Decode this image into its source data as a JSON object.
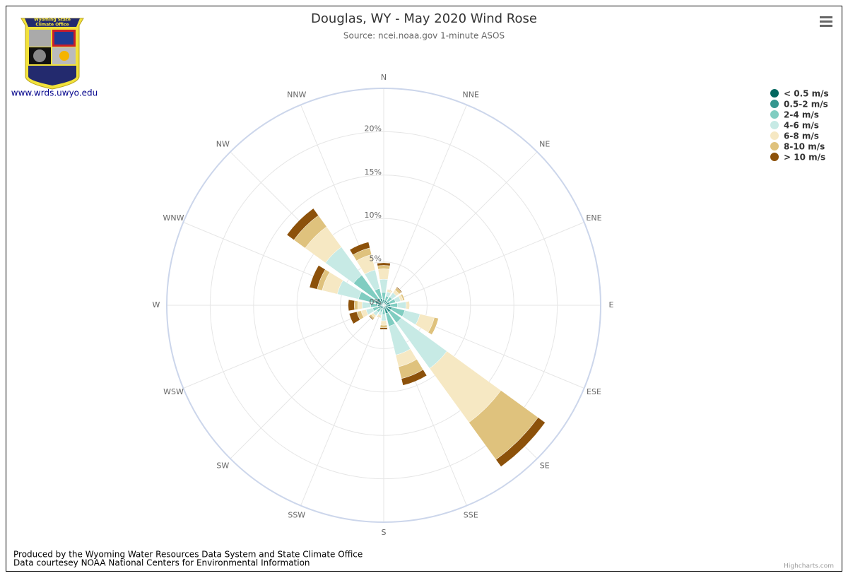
{
  "header": {
    "logo_text": [
      "Wyoming State",
      "Climate Office"
    ],
    "link": "www.wrds.uwyo.edu"
  },
  "footer": {
    "lines": [
      "Produced by the Wyoming Water Resources Data System and State Climate Office",
      "Data courtesey NOAA National Centers for Environmental Information"
    ],
    "credits": "Highcharts.com"
  },
  "chart_data": {
    "type": "windrose",
    "title": "Douglas, WY - May 2020 Wind Rose",
    "subtitle": "Source: ncei.noaa.gov 1-minute ASOS",
    "categories": [
      "N",
      "NNE",
      "NE",
      "ENE",
      "E",
      "ESE",
      "SE",
      "SSE",
      "S",
      "SSW",
      "SW",
      "WSW",
      "W",
      "WNW",
      "NW",
      "NNW"
    ],
    "ylim": [
      0,
      25
    ],
    "yticks": [
      {
        "value": 0,
        "label": "0%"
      },
      {
        "value": 5,
        "label": "5%"
      },
      {
        "value": 10,
        "label": "10%"
      },
      {
        "value": 15,
        "label": "15%"
      },
      {
        "value": 20,
        "label": "20%"
      }
    ],
    "grid": true,
    "legend": "right",
    "series": [
      {
        "name": "< 0.5 m/s",
        "color": "#01665e",
        "values": [
          0.2,
          0.2,
          0.2,
          0.2,
          0.2,
          0.2,
          0.2,
          0.2,
          0.1,
          0.1,
          0.1,
          0.2,
          0.2,
          0.2,
          0.2,
          0.2
        ]
      },
      {
        "name": "0.5-2 m/s",
        "color": "#35978f",
        "values": [
          0.5,
          0.4,
          0.4,
          0.5,
          0.6,
          0.8,
          0.8,
          0.8,
          0.4,
          0.3,
          0.4,
          0.5,
          0.5,
          0.8,
          0.8,
          0.6
        ]
      },
      {
        "name": "2-4 m/s",
        "color": "#80cdc1",
        "values": [
          0.8,
          0.5,
          0.6,
          0.7,
          0.8,
          1.5,
          1.5,
          1.5,
          0.6,
          0.4,
          0.5,
          0.6,
          0.8,
          2,
          3.3,
          1.2
        ]
      },
      {
        "name": "4-6 m/s",
        "color": "#c7eae5",
        "values": [
          1.5,
          0.5,
          0.6,
          0.6,
          1,
          1.8,
          6.5,
          3.4,
          0.7,
          0.4,
          0.5,
          0.8,
          1,
          2.5,
          4,
          2.2
        ]
      },
      {
        "name": "6-8 m/s",
        "color": "#f6e8c3",
        "values": [
          1.2,
          0.2,
          0.4,
          0.3,
          0.4,
          1.7,
          7.7,
          1.4,
          0.5,
          0.2,
          0.3,
          0.6,
          0.5,
          1.8,
          2.9,
          1.8
        ]
      },
      {
        "name": "8-10 m/s",
        "color": "#dfc27d",
        "values": [
          0.4,
          0.1,
          0.3,
          0.2,
          0,
          0.5,
          5.3,
          1.4,
          0.3,
          0.1,
          0.2,
          0.5,
          0.4,
          0.6,
          1.6,
          0.8
        ]
      },
      {
        "name": "> 10 m/s",
        "color": "#8c510a",
        "values": [
          0.3,
          0,
          0.1,
          0,
          0,
          0,
          1.0,
          0.8,
          0.2,
          0,
          0.1,
          0.9,
          0.7,
          0.9,
          1.0,
          0.7
        ]
      }
    ]
  }
}
